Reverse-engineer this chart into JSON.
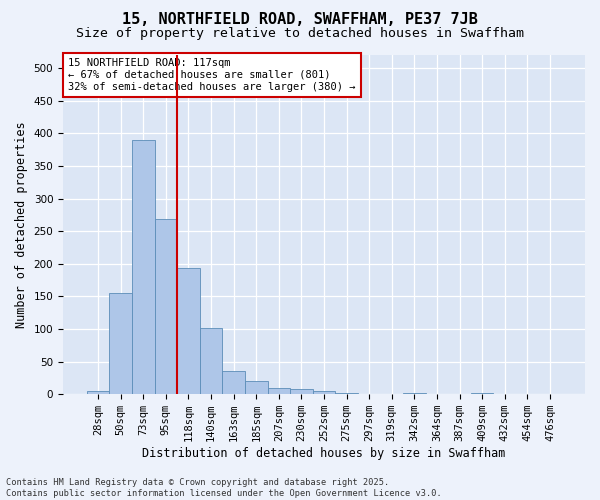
{
  "title": "15, NORTHFIELD ROAD, SWAFFHAM, PE37 7JB",
  "subtitle": "Size of property relative to detached houses in Swaffham",
  "xlabel": "Distribution of detached houses by size in Swaffham",
  "ylabel": "Number of detached properties",
  "bar_values": [
    5,
    155,
    390,
    268,
    193,
    101,
    36,
    20,
    10,
    8,
    5,
    2,
    0,
    0,
    2,
    0,
    0,
    2,
    0,
    0,
    0
  ],
  "categories": [
    "28sqm",
    "50sqm",
    "73sqm",
    "95sqm",
    "118sqm",
    "140sqm",
    "163sqm",
    "185sqm",
    "207sqm",
    "230sqm",
    "252sqm",
    "275sqm",
    "297sqm",
    "319sqm",
    "342sqm",
    "364sqm",
    "387sqm",
    "409sqm",
    "432sqm",
    "454sqm",
    "476sqm"
  ],
  "bar_color": "#aec6e8",
  "bar_edge_color": "#5b8db8",
  "vline_color": "#cc0000",
  "annotation_text": "15 NORTHFIELD ROAD: 117sqm\n← 67% of detached houses are smaller (801)\n32% of semi-detached houses are larger (380) →",
  "annotation_box_color": "#cc0000",
  "ylim": [
    0,
    520
  ],
  "yticks": [
    0,
    50,
    100,
    150,
    200,
    250,
    300,
    350,
    400,
    450,
    500
  ],
  "background_color": "#dce6f5",
  "fig_background_color": "#edf2fb",
  "grid_color": "#ffffff",
  "footer_text": "Contains HM Land Registry data © Crown copyright and database right 2025.\nContains public sector information licensed under the Open Government Licence v3.0.",
  "title_fontsize": 11,
  "subtitle_fontsize": 9.5,
  "axis_label_fontsize": 8.5,
  "tick_fontsize": 7.5,
  "annotation_fontsize": 7.5,
  "footer_fontsize": 6.2
}
